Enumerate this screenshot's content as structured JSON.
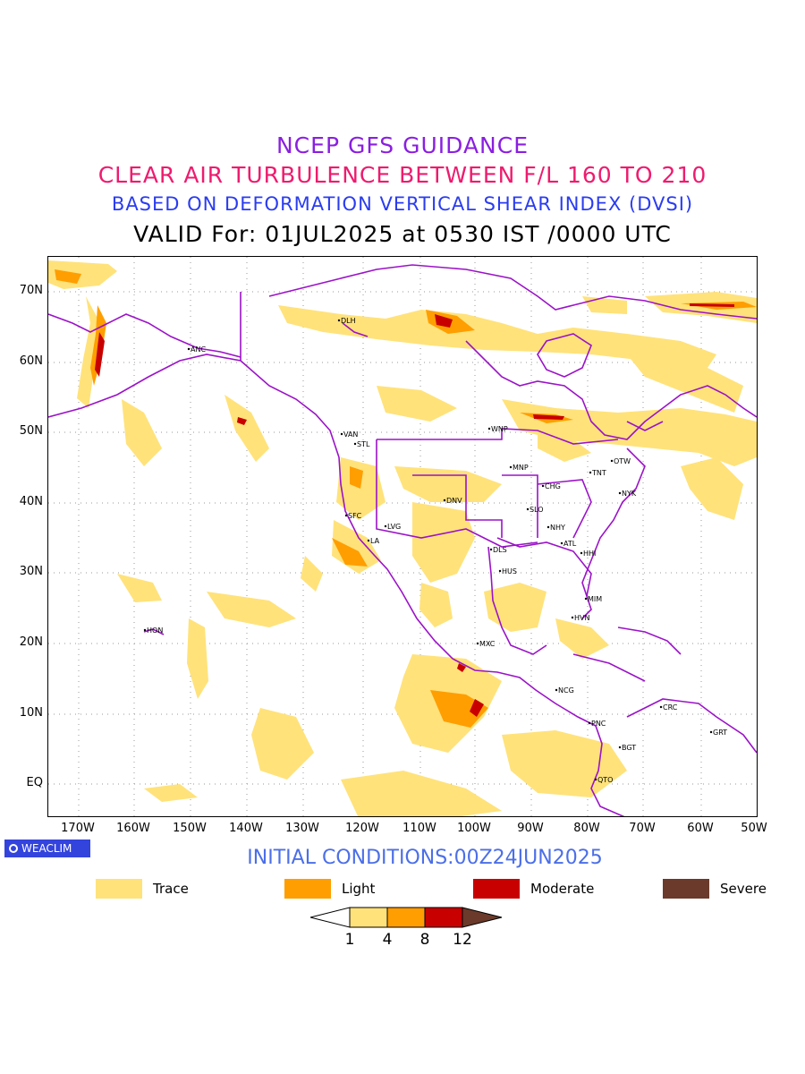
{
  "header": {
    "line1": "NCEP GFS GUIDANCE",
    "line2": "CLEAR AIR TURBULENCE BETWEEN F/L 160 TO 210",
    "line3": "BASED ON DEFORMATION VERTICAL SHEAR INDEX (DVSI)",
    "line4": "VALID For: 01JUL2025 at 0530 IST /0000 UTC"
  },
  "map": {
    "lat_labels": [
      "70N",
      "60N",
      "50N",
      "40N",
      "30N",
      "20N",
      "10N",
      "EQ"
    ],
    "lon_labels": [
      "170W",
      "160W",
      "150W",
      "140W",
      "130W",
      "120W",
      "110W",
      "100W",
      "90W",
      "80W",
      "70W",
      "60W",
      "50W"
    ],
    "stations": [
      "ANC",
      "DLH",
      "VAN",
      "STL",
      "WNP",
      "MNP",
      "TNT",
      "OTW",
      "CHG",
      "NYK",
      "SFC",
      "LA",
      "LVG",
      "DNV",
      "SLO",
      "NHY",
      "ATL",
      "DLS",
      "HHI",
      "HUS",
      "MIM",
      "HVN",
      "HON",
      "MXC",
      "NCG",
      "PNC",
      "CRC",
      "GRT",
      "BGT",
      "QTO"
    ],
    "colors": {
      "coast": "#9b13c8",
      "trace": "#ffe27a",
      "light": "#ff9e00",
      "moderate": "#c80000",
      "severe": "#6b3a2a"
    }
  },
  "footer": {
    "badge": "WEACLIM",
    "initial_conditions": "INITIAL CONDITIONS:00Z24JUN2025"
  },
  "legend": [
    {
      "label": "Trace",
      "color": "#ffe27a"
    },
    {
      "label": "Light",
      "color": "#ff9e00"
    },
    {
      "label": "Moderate",
      "color": "#c80000"
    },
    {
      "label": "Severe",
      "color": "#6b3a2a"
    }
  ],
  "colorbar": {
    "ticks": [
      "1",
      "4",
      "8",
      "12"
    ],
    "colors": [
      "#ffe27a",
      "#ff9e00",
      "#c80000",
      "#6b3a2a"
    ]
  }
}
